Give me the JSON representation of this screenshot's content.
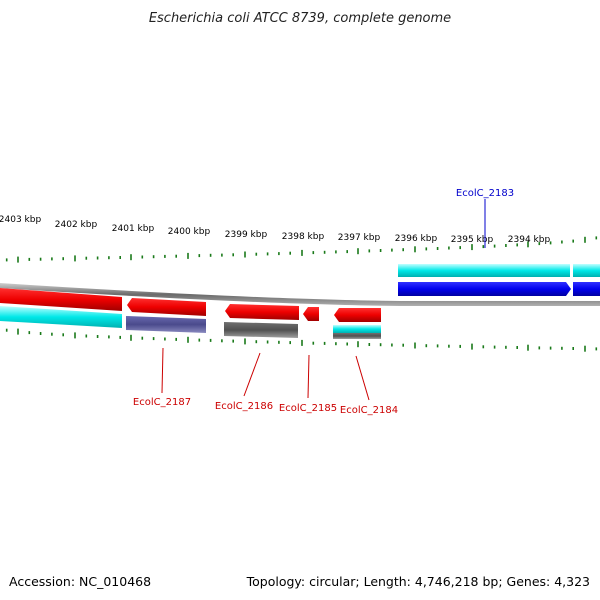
{
  "title": "Escherichia coli ATCC 8739, complete genome",
  "footer": {
    "accession": "Accession: NC_010468",
    "stats": "Topology: circular; Length: 4,746,218 bp; Genes: 4,323"
  },
  "ruler": {
    "labels": [
      "2403 kbp",
      "2402 kbp",
      "2401 kbp",
      "2400 kbp",
      "2399 kbp",
      "2398 kbp",
      "2397 kbp",
      "2396 kbp",
      "2395 kbp",
      "2394 kbp"
    ]
  },
  "genes": [
    {
      "name": "EcolC_2183",
      "strand": "forward",
      "color": "#0000cc"
    },
    {
      "name": "EcolC_2184",
      "strand": "reverse",
      "color": "#cc0000"
    },
    {
      "name": "EcolC_2185",
      "strand": "reverse",
      "color": "#cc0000"
    },
    {
      "name": "EcolC_2186",
      "strand": "reverse",
      "color": "#cc0000"
    },
    {
      "name": "EcolC_2187",
      "strand": "reverse",
      "color": "#cc0000"
    }
  ],
  "colors": {
    "backbone": "#8a8a8a",
    "cds_forward": "#0000ff",
    "cds_reverse": "#ff0000",
    "gene_track": "#00e5e5",
    "protein_track": "#4a4a8c",
    "grey_track": "#606060",
    "tick": "#1a7a1a"
  }
}
